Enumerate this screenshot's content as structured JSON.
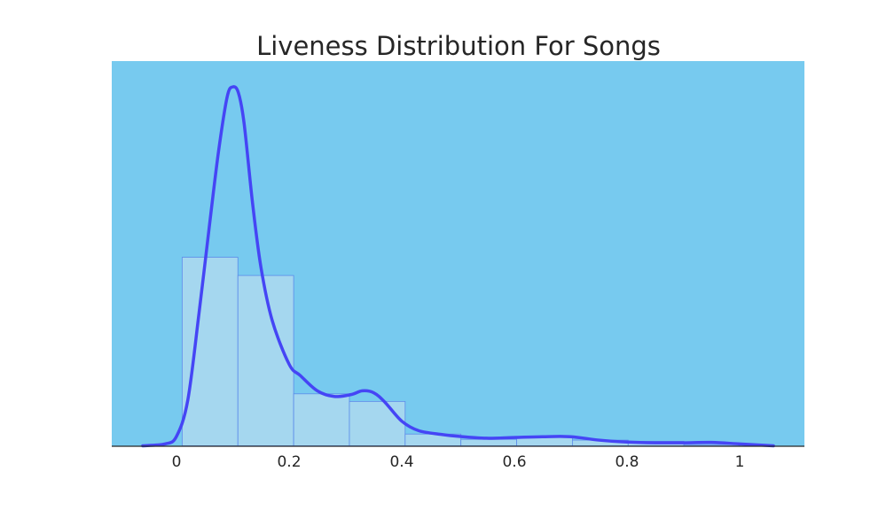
{
  "chart_data": {
    "type": "bar",
    "title": "Liveness Distribution For Songs",
    "xlabel": "",
    "ylabel": "",
    "xlim": [
      -0.115,
      1.115
    ],
    "ylim": [
      0,
      1
    ],
    "grid": false,
    "x_ticks": [
      0,
      0.2,
      0.4,
      0.6,
      0.8,
      1
    ],
    "x_tick_labels": [
      "0",
      "0.2",
      "0.4",
      "0.6",
      "0.8",
      "1"
    ],
    "histogram": {
      "bin_edges": [
        0.01,
        0.109,
        0.208,
        0.307,
        0.406,
        0.505,
        0.604,
        0.703,
        0.802,
        0.901,
        1.0
      ],
      "values": [
        0.497,
        0.449,
        0.137,
        0.117,
        0.031,
        0.017,
        0.024,
        0.015,
        0.012,
        0.003
      ]
    },
    "kde": {
      "name": "",
      "x": [
        -0.06,
        -0.02,
        0.0,
        0.02,
        0.04,
        0.06,
        0.075,
        0.09,
        0.1,
        0.11,
        0.12,
        0.135,
        0.15,
        0.17,
        0.2,
        0.22,
        0.25,
        0.28,
        0.31,
        0.33,
        0.35,
        0.37,
        0.4,
        0.43,
        0.47,
        0.5,
        0.55,
        0.6,
        0.65,
        0.7,
        0.75,
        0.8,
        0.85,
        0.9,
        0.95,
        1.0,
        1.06
      ],
      "y": [
        0.0,
        0.005,
        0.025,
        0.12,
        0.35,
        0.6,
        0.78,
        0.92,
        0.946,
        0.93,
        0.85,
        0.64,
        0.47,
        0.33,
        0.215,
        0.185,
        0.145,
        0.13,
        0.135,
        0.145,
        0.14,
        0.115,
        0.065,
        0.04,
        0.03,
        0.025,
        0.02,
        0.022,
        0.024,
        0.024,
        0.015,
        0.01,
        0.008,
        0.008,
        0.009,
        0.005,
        0.0
      ]
    },
    "colors": {
      "plot_background": "#77CAEF",
      "bar_fill": "#A5D7EF",
      "bar_edge": "#5B8BEA",
      "kde_line": "#4545F5",
      "axis": "#262626"
    }
  }
}
